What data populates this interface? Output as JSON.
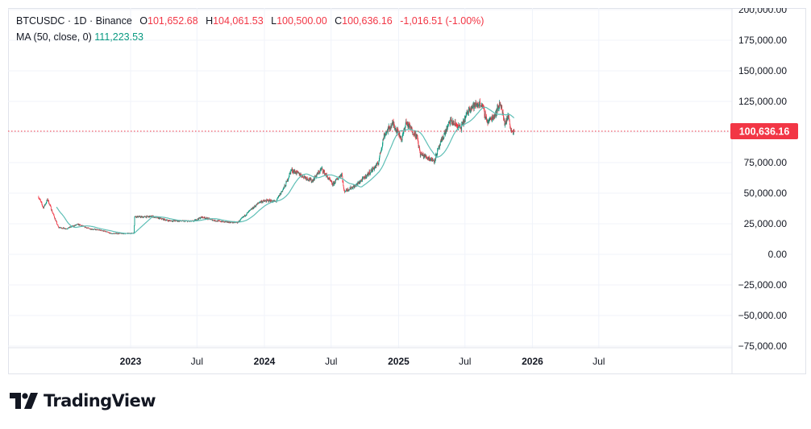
{
  "legend": {
    "symbol": "BTCUSDC · 1D · Binance",
    "o_label": "O",
    "o_value": "101,652.68",
    "h_label": "H",
    "h_value": "104,061.53",
    "l_label": "L",
    "l_value": "100,500.00",
    "c_label": "C",
    "c_value": "100,636.16",
    "change": "-1,016.51 (-1.00%)",
    "ma_label": "MA (50, close, 0)",
    "ma_value": "111,223.53"
  },
  "price_label": "100,636.16",
  "logo_text": "TradingView",
  "colors": {
    "up": "#089981",
    "down": "#f23645",
    "ma": "#5fbfb6",
    "grid": "#f0f3fa",
    "price_line": "#f23645"
  },
  "chart_data": {
    "type": "candlestick",
    "interval": "1D",
    "grid": true,
    "ylim": [
      -80000,
      205000
    ],
    "y_ticks": [
      200000,
      175000,
      150000,
      125000,
      100000,
      75000,
      50000,
      25000,
      0,
      -25000,
      -50000,
      -75000
    ],
    "y_tick_labels": [
      "200,000.00",
      "175,000.00",
      "150,000.00",
      "125,000.00",
      "100,000.00",
      "75,000.00",
      "50,000.00",
      "25,000.00",
      "0.00",
      "−25,000.00",
      "−50,000.00",
      "−75,000.00"
    ],
    "x_ticks": [
      "2023",
      "Jul",
      "2024",
      "Jul",
      "2025",
      "Jul",
      "2026",
      "Jul"
    ],
    "x_tick_bold": [
      true,
      false,
      true,
      false,
      true,
      false,
      true,
      false
    ],
    "x_tick_dates": [
      "2023-01-01",
      "2023-07-01",
      "2024-01-01",
      "2024-07-01",
      "2025-01-01",
      "2025-07-01",
      "2026-01-01",
      "2026-07-01"
    ],
    "x_range": [
      "2022-04-25",
      "2026-11-15"
    ],
    "last_close": 100636.16,
    "price_path": [
      [
        "2022-04-25",
        47000
      ],
      [
        "2022-05-08",
        38000
      ],
      [
        "2022-05-20",
        45000
      ],
      [
        "2022-06-01",
        35000
      ],
      [
        "2022-06-18",
        22000
      ],
      [
        "2022-07-10",
        21000
      ],
      [
        "2022-08-10",
        24500
      ],
      [
        "2022-09-10",
        21000
      ],
      [
        "2022-10-15",
        19500
      ],
      [
        "2022-11-09",
        17000
      ],
      [
        "2022-12-20",
        17000
      ],
      [
        "2023-01-10",
        17400
      ],
      [
        "2023-01-12",
        31000
      ],
      [
        "2023-02-01",
        30500
      ],
      [
        "2023-03-01",
        31000
      ],
      [
        "2023-04-15",
        27500
      ],
      [
        "2023-06-20",
        27000
      ],
      [
        "2023-07-15",
        30500
      ],
      [
        "2023-08-20",
        27500
      ],
      [
        "2023-09-15",
        26500
      ],
      [
        "2023-10-20",
        26000
      ],
      [
        "2023-11-20",
        35000
      ],
      [
        "2023-12-20",
        43000
      ],
      [
        "2024-01-15",
        44000
      ],
      [
        "2024-02-01",
        43000
      ],
      [
        "2024-02-28",
        57000
      ],
      [
        "2024-03-14",
        69000
      ],
      [
        "2024-04-15",
        64000
      ],
      [
        "2024-05-10",
        60000
      ],
      [
        "2024-06-05",
        70000
      ],
      [
        "2024-07-05",
        57000
      ],
      [
        "2024-07-30",
        66000
      ],
      [
        "2024-08-05",
        51500
      ],
      [
        "2024-09-05",
        56000
      ],
      [
        "2024-10-01",
        63000
      ],
      [
        "2024-11-06",
        74000
      ],
      [
        "2024-11-22",
        97000
      ],
      [
        "2024-12-06",
        103000
      ],
      [
        "2024-12-17",
        107000
      ],
      [
        "2025-01-10",
        94000
      ],
      [
        "2025-01-21",
        108000
      ],
      [
        "2025-02-20",
        96000
      ],
      [
        "2025-03-01",
        82000
      ],
      [
        "2025-04-08",
        76500
      ],
      [
        "2025-05-01",
        95000
      ],
      [
        "2025-05-22",
        109000
      ],
      [
        "2025-06-20",
        103000
      ],
      [
        "2025-07-14",
        120000
      ],
      [
        "2025-08-14",
        123500
      ],
      [
        "2025-09-01",
        108000
      ],
      [
        "2025-09-20",
        114000
      ],
      [
        "2025-10-06",
        124000
      ],
      [
        "2025-10-17",
        107000
      ],
      [
        "2025-10-28",
        113000
      ],
      [
        "2025-11-04",
        101000
      ],
      [
        "2025-11-12",
        100636
      ]
    ]
  }
}
